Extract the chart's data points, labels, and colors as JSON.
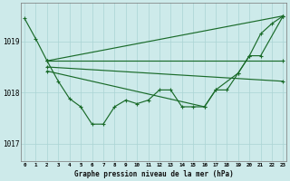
{
  "title": "Graphe pression niveau de la mer (hPa)",
  "background_color": "#cdeaea",
  "grid_color": "#aad4d4",
  "line_color": "#1a6b2a",
  "yticks": [
    1017,
    1018,
    1019
  ],
  "ylim": [
    1016.65,
    1019.75
  ],
  "xlim": [
    -0.3,
    23.3
  ],
  "x_labels": [
    "0",
    "1",
    "2",
    "3",
    "4",
    "5",
    "6",
    "7",
    "8",
    "9",
    "10",
    "11",
    "12",
    "13",
    "14",
    "15",
    "16",
    "17",
    "18",
    "19",
    "20",
    "21",
    "22",
    "23"
  ],
  "line1_x": [
    0,
    1,
    2,
    3,
    4,
    5,
    6,
    7,
    8,
    9,
    10,
    11,
    12,
    13,
    14,
    15,
    16,
    17,
    18,
    19,
    20,
    21,
    22,
    23
  ],
  "line1_y": [
    1019.45,
    1019.05,
    1018.62,
    1018.22,
    1017.88,
    1017.72,
    1017.38,
    1017.38,
    1017.72,
    1017.85,
    1017.78,
    1017.85,
    1018.05,
    1018.05,
    1017.72,
    1017.72,
    1017.72,
    1018.05,
    1018.05,
    1018.38,
    1018.72,
    1019.15,
    1019.35,
    1019.5
  ],
  "line2_x": [
    2,
    23
  ],
  "line2_y": [
    1018.62,
    1019.5
  ],
  "line3_x": [
    2,
    23
  ],
  "line3_y": [
    1018.62,
    1018.62
  ],
  "line4_x": [
    2,
    23
  ],
  "line4_y": [
    1018.5,
    1018.22
  ],
  "line5_x": [
    2,
    16,
    17,
    19,
    20,
    21,
    23
  ],
  "line5_y": [
    1018.42,
    1017.72,
    1018.05,
    1018.38,
    1018.72,
    1018.72,
    1019.5
  ]
}
